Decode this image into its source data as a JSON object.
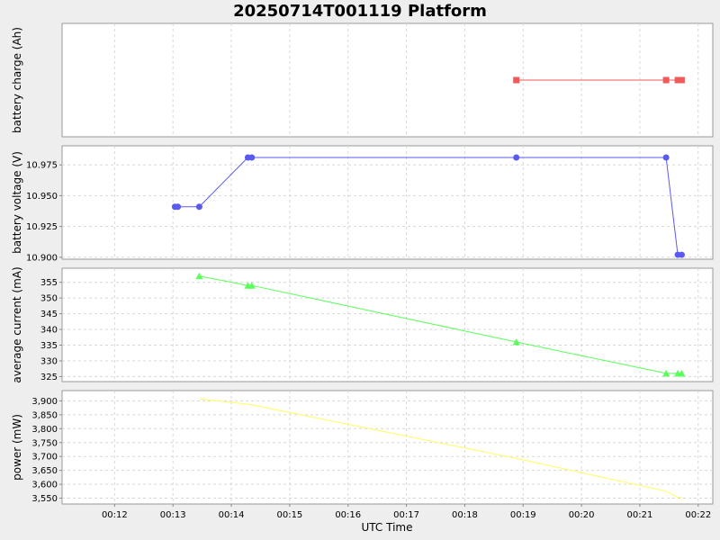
{
  "chart_data": {
    "title": "20250714T001119 Platform",
    "type": "line",
    "xlabel": "UTC Time",
    "x_unit": "minutes",
    "xlim": [
      "00:11:06",
      "00:22:15"
    ],
    "x_ticks": [
      "00:12",
      "00:13",
      "00:14",
      "00:15",
      "00:16",
      "00:17",
      "00:18",
      "00:19",
      "00:20",
      "00:21",
      "00:22"
    ],
    "grid": true,
    "panels": [
      {
        "ylabel": "battery charge (Ah)",
        "ylim": [
          0,
          1
        ],
        "y_ticks": [],
        "y_tick_labels": [],
        "series": [
          {
            "color": "#f05a5a",
            "marker": "square",
            "x": [
              "00:18:53",
              "00:21:27",
              "00:21:39",
              "00:21:43"
            ],
            "y": [
              0.5,
              0.5,
              0.5,
              0.5
            ]
          }
        ]
      },
      {
        "ylabel": "battery voltage (V)",
        "ylim": [
          10.8984,
          10.9905
        ],
        "y_ticks": [
          10.9,
          10.925,
          10.95,
          10.975
        ],
        "y_tick_labels": [
          "10.900",
          "10.925",
          "10.950",
          "10.975"
        ],
        "series": [
          {
            "color": "#5a5af0",
            "marker": "circle",
            "x": [
              "00:13:02",
              "00:13:05",
              "00:13:27",
              "00:14:17",
              "00:14:21",
              "00:18:53",
              "00:21:27",
              "00:21:39",
              "00:21:43"
            ],
            "y": [
              10.941,
              10.941,
              10.941,
              10.981,
              10.981,
              10.981,
              10.981,
              10.902,
              10.902
            ]
          }
        ]
      },
      {
        "ylabel": "average current (mA)",
        "ylim": [
          323.4,
          359.5
        ],
        "y_ticks": [
          325,
          330,
          335,
          340,
          345,
          350,
          355
        ],
        "y_tick_labels": [
          "325",
          "330",
          "335",
          "340",
          "345",
          "350",
          "355"
        ],
        "series": [
          {
            "color": "#5aff5a",
            "marker": "triangle",
            "x": [
              "00:13:27",
              "00:14:17",
              "00:14:21",
              "00:18:53",
              "00:21:27",
              "00:21:39",
              "00:21:43"
            ],
            "y": [
              357,
              354,
              354,
              336,
              326,
              326,
              326
            ]
          }
        ]
      },
      {
        "ylabel": "power (mW)",
        "ylim": [
          3529,
          3937
        ],
        "y_ticks": [
          3550,
          3600,
          3650,
          3700,
          3750,
          3800,
          3850,
          3900
        ],
        "y_tick_labels": [
          "3,550",
          "3,600",
          "3,650",
          "3,700",
          "3,750",
          "3,800",
          "3,850",
          "3,900"
        ],
        "series": [
          {
            "color": "#ffff5a",
            "marker": "none",
            "x": [
              "00:13:27",
              "00:14:17",
              "00:14:21",
              "00:18:53",
              "00:21:27",
              "00:21:39",
              "00:21:43"
            ],
            "y": [
              3907,
              3888,
              3886,
              3693,
              3575,
              3553,
              3553
            ]
          }
        ]
      }
    ]
  }
}
